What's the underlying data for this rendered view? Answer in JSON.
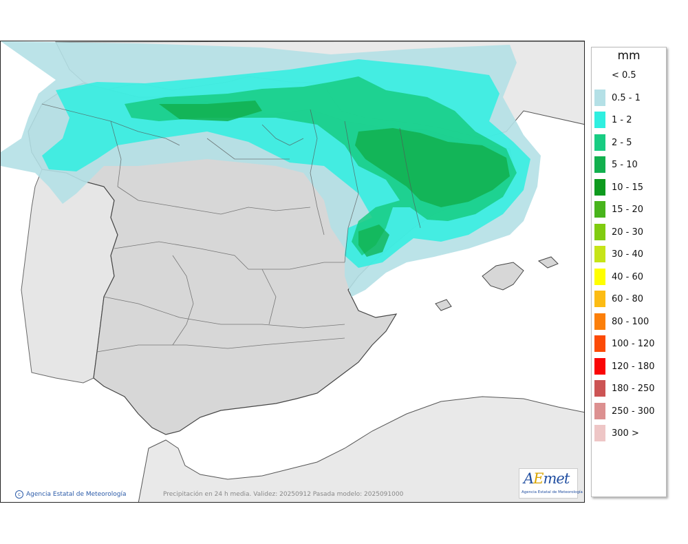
{
  "legend": {
    "unit": "mm",
    "items": [
      {
        "label": "< 0.5",
        "color": "#ffffff"
      },
      {
        "label": "0.5 - 1",
        "color": "#b4e0e6"
      },
      {
        "label": "1 - 2",
        "color": "#2fefe0"
      },
      {
        "label": "2 - 5",
        "color": "#18cc82"
      },
      {
        "label": "5 - 10",
        "color": "#12b04e"
      },
      {
        "label": "10 - 15",
        "color": "#0e9a1e"
      },
      {
        "label": "15 - 20",
        "color": "#48b41c"
      },
      {
        "label": "20 - 30",
        "color": "#80cc10"
      },
      {
        "label": "30 - 40",
        "color": "#c6e418"
      },
      {
        "label": "40 - 60",
        "color": "#ffff00"
      },
      {
        "label": "60 - 80",
        "color": "#fcbc14"
      },
      {
        "label": "80 - 100",
        "color": "#fc7f0a"
      },
      {
        "label": "100 - 120",
        "color": "#fc4a06"
      },
      {
        "label": "120 - 180",
        "color": "#fa0606"
      },
      {
        "label": "180 - 250",
        "color": "#cc5454"
      },
      {
        "label": "250 - 300",
        "color": "#dc9090"
      },
      {
        "label": "300 >",
        "color": "#eec6c6"
      }
    ]
  },
  "footer": {
    "credit": "Agencia Estatal de Meteorología",
    "caption": "Precipitación en 24 h media. Validez: 20250912 Pasada modelo: 2025091000"
  },
  "logo": {
    "word_a": "A",
    "word_e": "E",
    "word_rest": "met",
    "subtitle": "Agencia Estatal de Meteorología"
  }
}
